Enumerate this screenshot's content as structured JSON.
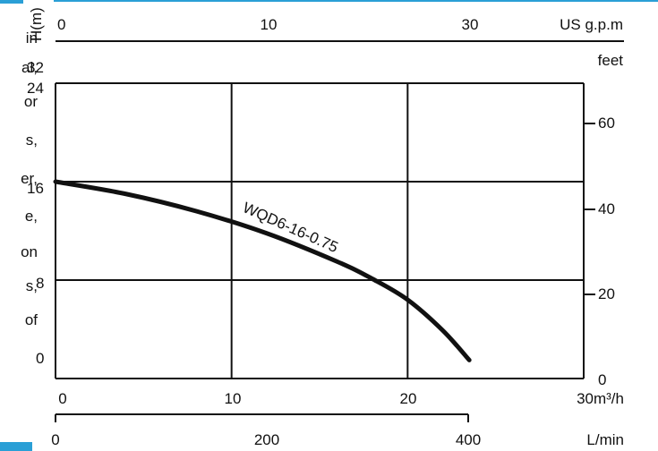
{
  "left_text": [
    "in",
    "al,",
    "or",
    "s,",
    "er,",
    "e,",
    "on",
    "s,",
    "of"
  ],
  "colors": {
    "accent": "#2a9fd6",
    "curve": "#111111",
    "curve_label": "#e8952a",
    "grid": "#111111"
  },
  "chart_data": {
    "type": "line",
    "ylabel": "H(m)",
    "x_flow_m3h": {
      "ticks": [
        "0",
        "10",
        "20",
        "30m³/h"
      ],
      "range": [
        0,
        30
      ]
    },
    "x_usgpm": {
      "ticks": [
        "0",
        "10",
        "30",
        "US g.p.m"
      ],
      "values": [
        0,
        10,
        30
      ]
    },
    "x_lmin": {
      "ticks": [
        "0",
        "200",
        "400",
        "L/min"
      ],
      "values": [
        0,
        200,
        400
      ]
    },
    "y_head_m": {
      "ticks": [
        "0",
        "8",
        "16",
        "24",
        "32"
      ],
      "range": [
        0,
        24
      ]
    },
    "y_feet": {
      "unit_label": "feet",
      "ticks": [
        "20",
        "40",
        "60",
        "0"
      ],
      "values": [
        20,
        40,
        60,
        0
      ]
    },
    "grid": true,
    "series": [
      {
        "name": "WQD6-16-0.75",
        "x": [
          0,
          4,
          8,
          12,
          16,
          18,
          20,
          22,
          23.5
        ],
        "y": [
          16,
          15,
          13.6,
          11.8,
          9.5,
          8.1,
          6.4,
          3.9,
          1.5
        ]
      }
    ]
  }
}
